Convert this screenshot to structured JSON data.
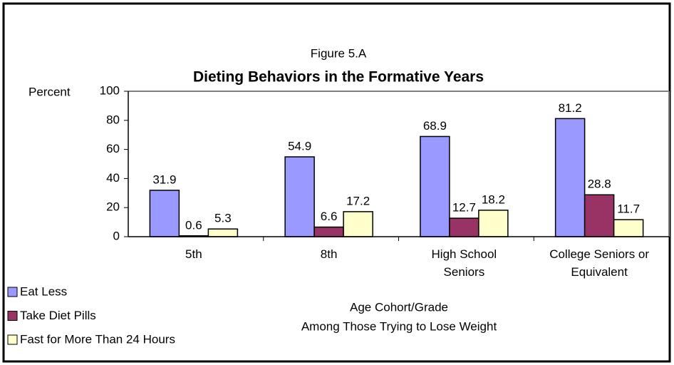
{
  "chart_data": {
    "type": "bar",
    "supertitle": "Figure 5.A",
    "title": "Dieting Behaviors in the Formative Years",
    "ylabel": "Percent",
    "xlabel": [
      "Age Cohort/Grade",
      "Among Those Trying to Lose Weight"
    ],
    "categories": [
      "5th",
      "8th",
      "High School Seniors",
      "College Seniors or Equivalent"
    ],
    "series": [
      {
        "name": "Eat Less",
        "color": "#9999ff",
        "values": [
          31.9,
          54.9,
          68.9,
          81.2
        ]
      },
      {
        "name": "Take Diet Pills",
        "color": "#993366",
        "values": [
          0.6,
          6.6,
          12.7,
          28.8
        ]
      },
      {
        "name": "Fast for More Than 24 Hours",
        "color": "#ffffcc",
        "values": [
          5.3,
          17.2,
          18.2,
          11.7
        ]
      }
    ],
    "ylim": [
      0,
      100
    ],
    "yticks": [
      0,
      20,
      40,
      60,
      80,
      100
    ],
    "grid": false,
    "legend": "bottom-left"
  }
}
